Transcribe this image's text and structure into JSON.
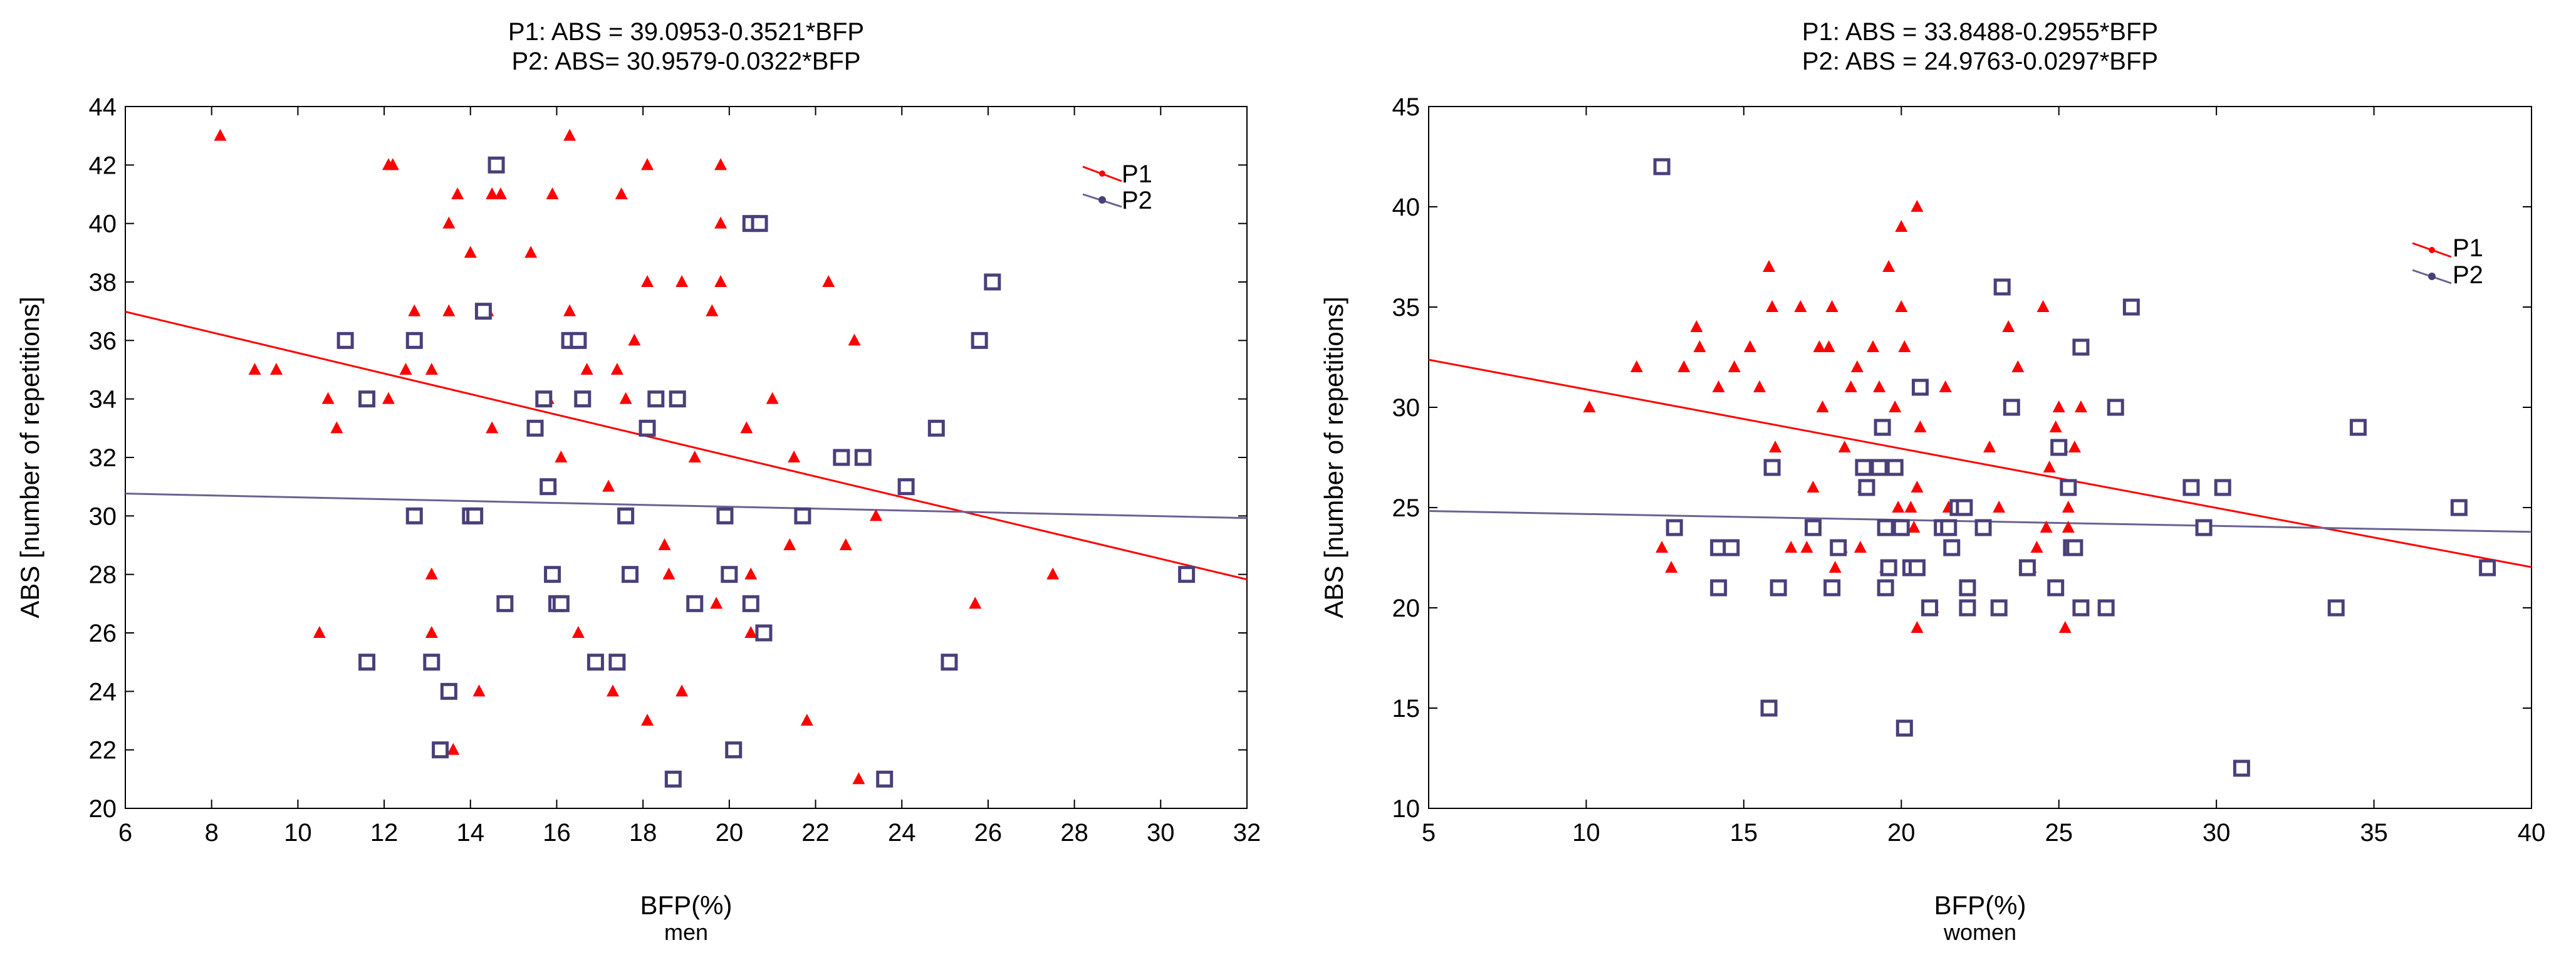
{
  "chart_data": [
    {
      "type": "scatter",
      "title": [
        "P1:  ABS = 39.0953-0.3521*BFP",
        "P2:  ABS= 30.9579-0.0322*BFP"
      ],
      "xlabel": "BFP(%)",
      "subtitle": "men",
      "ylabel": "ABS [number of repetitions]",
      "xlim": [
        6,
        32
      ],
      "ylim": [
        20,
        44
      ],
      "xticks": [
        "6",
        "8",
        "10",
        "12",
        "14",
        "16",
        "18",
        "20",
        "22",
        "24",
        "26",
        "28",
        "30",
        "32"
      ],
      "yticks": [
        "20",
        "22",
        "24",
        "26",
        "28",
        "30",
        "32",
        "34",
        "36",
        "38",
        "40",
        "42",
        "44"
      ],
      "legend": {
        "position": "top-right",
        "entries": [
          "P1",
          "P2"
        ]
      },
      "series": [
        {
          "name": "P1",
          "color": "#ff0000",
          "marker": "triangle",
          "fit": {
            "intercept": 39.0953,
            "slope": -0.3521
          },
          "points": [
            [
              8.2,
              43
            ],
            [
              9,
              35
            ],
            [
              9.5,
              35
            ],
            [
              10.5,
              26
            ],
            [
              10.7,
              34
            ],
            [
              10.9,
              33
            ],
            [
              12.1,
              42
            ],
            [
              12.2,
              42
            ],
            [
              12.5,
              35
            ],
            [
              12.7,
              37
            ],
            [
              13.1,
              35
            ],
            [
              13.1,
              28
            ],
            [
              13.1,
              26
            ],
            [
              13.5,
              40
            ],
            [
              13.5,
              37
            ],
            [
              13.6,
              22
            ],
            [
              13.7,
              41
            ],
            [
              14,
              39
            ],
            [
              14.2,
              24
            ],
            [
              14.5,
              41
            ],
            [
              14.5,
              33
            ],
            [
              14.7,
              41
            ],
            [
              14.4,
              37
            ],
            [
              15.4,
              39
            ],
            [
              15.8,
              34
            ],
            [
              15.9,
              41
            ],
            [
              16.1,
              32
            ],
            [
              16.3,
              43
            ],
            [
              16.3,
              37
            ],
            [
              16.5,
              26
            ],
            [
              16.7,
              35
            ],
            [
              17.2,
              31
            ],
            [
              17.3,
              24
            ],
            [
              17.4,
              35
            ],
            [
              17.5,
              41
            ],
            [
              17.6,
              34
            ],
            [
              17.8,
              36
            ],
            [
              18.1,
              23
            ],
            [
              18.1,
              38
            ],
            [
              18.1,
              42
            ],
            [
              18.5,
              29
            ],
            [
              18.6,
              28
            ],
            [
              18.9,
              38
            ],
            [
              18.9,
              24
            ],
            [
              19.2,
              32
            ],
            [
              19.6,
              37
            ],
            [
              19.7,
              27
            ],
            [
              19.8,
              42
            ],
            [
              19.8,
              40
            ],
            [
              19.8,
              38
            ],
            [
              20,
              28
            ],
            [
              20.4,
              33
            ],
            [
              20.5,
              28
            ],
            [
              20.5,
              26
            ],
            [
              21,
              34
            ],
            [
              21.4,
              29
            ],
            [
              21.5,
              32
            ],
            [
              21.8,
              23
            ],
            [
              22.3,
              38
            ],
            [
              22.7,
              29
            ],
            [
              22.9,
              36
            ],
            [
              23.4,
              30
            ],
            [
              23,
              21
            ],
            [
              25.7,
              27
            ],
            [
              27.5,
              28
            ],
            [
              12.1,
              34
            ]
          ]
        },
        {
          "name": "P2",
          "color": "#4b3f7a",
          "marker": "square",
          "fit": {
            "intercept": 30.9579,
            "slope": -0.0322
          },
          "points": [
            [
              11.1,
              36
            ],
            [
              11.6,
              34
            ],
            [
              11.6,
              25
            ],
            [
              12.7,
              36
            ],
            [
              12.7,
              30
            ],
            [
              13.1,
              25
            ],
            [
              13.3,
              22
            ],
            [
              13.5,
              24
            ],
            [
              14,
              30
            ],
            [
              14.1,
              30
            ],
            [
              14.3,
              37
            ],
            [
              14.6,
              42
            ],
            [
              14.8,
              27
            ],
            [
              15.5,
              33
            ],
            [
              15.7,
              34
            ],
            [
              15.8,
              31
            ],
            [
              15.9,
              28
            ],
            [
              16,
              27
            ],
            [
              16.1,
              27
            ],
            [
              16.3,
              36
            ],
            [
              16.5,
              36
            ],
            [
              16.6,
              34
            ],
            [
              16.9,
              25
            ],
            [
              17.4,
              25
            ],
            [
              17.6,
              30
            ],
            [
              17.7,
              28
            ],
            [
              18.1,
              33
            ],
            [
              18.3,
              34
            ],
            [
              18.7,
              21
            ],
            [
              18.8,
              34
            ],
            [
              19.2,
              27
            ],
            [
              19.9,
              30
            ],
            [
              20,
              28
            ],
            [
              20.1,
              22
            ],
            [
              20.5,
              27
            ],
            [
              20.5,
              40
            ],
            [
              20.7,
              40
            ],
            [
              20.8,
              26
            ],
            [
              21.7,
              30
            ],
            [
              22.6,
              32
            ],
            [
              23.1,
              32
            ],
            [
              23.6,
              21
            ],
            [
              24.1,
              31
            ],
            [
              24.8,
              33
            ],
            [
              25.1,
              25
            ],
            [
              25.8,
              36
            ],
            [
              26.1,
              38
            ],
            [
              30.6,
              28
            ]
          ]
        }
      ]
    },
    {
      "type": "scatter",
      "title": [
        "P1:  ABS = 33.8488-0.2955*BFP",
        "P2:  ABS = 24.9763-0.0297*BFP"
      ],
      "xlabel": "BFP(%)",
      "subtitle": "women",
      "ylabel": "ABS [number of repetitions]",
      "xlim": [
        5,
        40
      ],
      "ylim": [
        10,
        45
      ],
      "xticks": [
        "5",
        "10",
        "15",
        "20",
        "25",
        "30",
        "35",
        "40"
      ],
      "yticks": [
        "10",
        "15",
        "20",
        "25",
        "30",
        "35",
        "40",
        "45"
      ],
      "legend": {
        "position": "top-right",
        "entries": [
          "P1",
          "P2"
        ]
      },
      "series": [
        {
          "name": "P1",
          "color": "#ff0000",
          "marker": "triangle",
          "fit": {
            "intercept": 33.8488,
            "slope": -0.2955
          },
          "points": [
            [
              10.1,
              30
            ],
            [
              11.6,
              32
            ],
            [
              12.4,
              23
            ],
            [
              12.7,
              22
            ],
            [
              13.1,
              32
            ],
            [
              13.5,
              34
            ],
            [
              13.6,
              33
            ],
            [
              14.2,
              31
            ],
            [
              14.7,
              32
            ],
            [
              15.2,
              33
            ],
            [
              15.5,
              31
            ],
            [
              15.8,
              37
            ],
            [
              15.9,
              35
            ],
            [
              16,
              28
            ],
            [
              16.1,
              21
            ],
            [
              16.5,
              23
            ],
            [
              16.8,
              35
            ],
            [
              17,
              23
            ],
            [
              17.2,
              26
            ],
            [
              17.4,
              33
            ],
            [
              17.5,
              30
            ],
            [
              17.7,
              33
            ],
            [
              17.8,
              35
            ],
            [
              17.9,
              22
            ],
            [
              18.1,
              23
            ],
            [
              18.2,
              28
            ],
            [
              18.4,
              31
            ],
            [
              18.6,
              32
            ],
            [
              18.7,
              23
            ],
            [
              18.8,
              26
            ],
            [
              19.1,
              33
            ],
            [
              19.3,
              31
            ],
            [
              19.5,
              22
            ],
            [
              19.6,
              37
            ],
            [
              19.8,
              30
            ],
            [
              19.9,
              25
            ],
            [
              20,
              39
            ],
            [
              20,
              35
            ],
            [
              20.1,
              33
            ],
            [
              20.3,
              25
            ],
            [
              20.4,
              24
            ],
            [
              20.5,
              40
            ],
            [
              20.5,
              19
            ],
            [
              20.5,
              26
            ],
            [
              21,
              20
            ],
            [
              21.4,
              31
            ],
            [
              21.5,
              25
            ],
            [
              22.8,
              28
            ],
            [
              23.1,
              25
            ],
            [
              23.4,
              34
            ],
            [
              23.7,
              32
            ],
            [
              24.1,
              22
            ],
            [
              24.3,
              23
            ],
            [
              24.5,
              35
            ],
            [
              24.7,
              27
            ],
            [
              24.9,
              29
            ],
            [
              25,
              30
            ],
            [
              25.1,
              28
            ],
            [
              25.2,
              19
            ],
            [
              25.3,
              25
            ],
            [
              25.3,
              24
            ],
            [
              25.5,
              28
            ],
            [
              25.7,
              30
            ],
            [
              20.6,
              29
            ],
            [
              24.6,
              24
            ],
            [
              21.8,
              25
            ]
          ]
        },
        {
          "name": "P2",
          "color": "#4b3f7a",
          "marker": "square",
          "fit": {
            "intercept": 24.9763,
            "slope": -0.0297
          },
          "points": [
            [
              12.4,
              42
            ],
            [
              12.8,
              24
            ],
            [
              14.2,
              21
            ],
            [
              14.2,
              23
            ],
            [
              14.6,
              23
            ],
            [
              15.8,
              15
            ],
            [
              15.9,
              27
            ],
            [
              16.1,
              21
            ],
            [
              17.2,
              24
            ],
            [
              17.8,
              21
            ],
            [
              18,
              23
            ],
            [
              18.8,
              27
            ],
            [
              18.9,
              26
            ],
            [
              19.3,
              27
            ],
            [
              19.4,
              29
            ],
            [
              19.5,
              24
            ],
            [
              19.5,
              21
            ],
            [
              19.6,
              22
            ],
            [
              19.8,
              27
            ],
            [
              20,
              24
            ],
            [
              20.1,
              14
            ],
            [
              20.3,
              22
            ],
            [
              20.5,
              22
            ],
            [
              20.6,
              31
            ],
            [
              20.9,
              20
            ],
            [
              21.3,
              24
            ],
            [
              21.5,
              24
            ],
            [
              21.6,
              23
            ],
            [
              21.8,
              25
            ],
            [
              22,
              25
            ],
            [
              22.1,
              21
            ],
            [
              22.1,
              20
            ],
            [
              22.6,
              24
            ],
            [
              23.1,
              20
            ],
            [
              23.2,
              36
            ],
            [
              23.5,
              30
            ],
            [
              24,
              22
            ],
            [
              24.9,
              21
            ],
            [
              25,
              28
            ],
            [
              25.3,
              26
            ],
            [
              25.4,
              23
            ],
            [
              25.5,
              23
            ],
            [
              25.7,
              33
            ],
            [
              25.7,
              20
            ],
            [
              26.5,
              20
            ],
            [
              26.8,
              30
            ],
            [
              27.3,
              35
            ],
            [
              29.2,
              26
            ],
            [
              29.6,
              24
            ],
            [
              30.2,
              26
            ],
            [
              30.8,
              12
            ],
            [
              33.8,
              20
            ],
            [
              34.5,
              29
            ],
            [
              37.7,
              25
            ],
            [
              38.6,
              22
            ]
          ]
        }
      ]
    }
  ]
}
